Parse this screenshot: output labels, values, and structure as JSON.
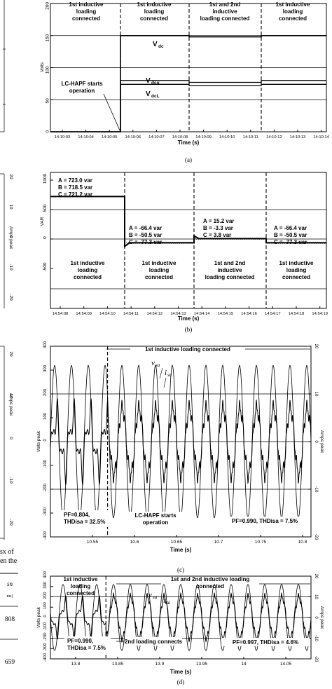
{
  "chart_data": [
    {
      "type": "line",
      "caption": "(a)",
      "xlabel": "Time (s)",
      "ylabel": "Volts",
      "ylim": [
        0,
        200
      ],
      "yticks": [
        "0",
        "50",
        "100",
        "150",
        "200"
      ],
      "xticks": [
        "14:10:03",
        "14:10:04",
        "14:10:05",
        "14:10:06",
        "14:10:07",
        "14:10:08",
        "14:10:09",
        "14:10:10",
        "14:10:11",
        "14:10:12",
        "14:10:13",
        "14:10:14"
      ],
      "regions": [
        "1st inductive loading connected",
        "1st inductive loading connected",
        "1st and 2nd inductive loading connected",
        "1st inductive loading connected"
      ],
      "series": [
        {
          "name": "Vdc",
          "values": [
            0,
            0,
            0,
            150,
            150,
            150,
            148,
            148,
            148,
            150,
            150,
            150
          ]
        },
        {
          "name": "Vdcu",
          "values": [
            0,
            0,
            0,
            80,
            80,
            80,
            77,
            77,
            77,
            80,
            80,
            80
          ]
        },
        {
          "name": "VdcL",
          "values": [
            0,
            0,
            0,
            74,
            74,
            74,
            72,
            72,
            72,
            74,
            74,
            74
          ]
        }
      ],
      "annotations": [
        "LC-HAPF starts operation"
      ]
    },
    {
      "type": "line",
      "caption": "(b)",
      "xlabel": "Time (s)",
      "ylabel": "VAR",
      "ylim": [
        -500,
        1000
      ],
      "yticks": [
        "1000",
        "500",
        "0",
        "-500"
      ],
      "xticks": [
        "14:54:08",
        "14:54:09",
        "14:54:10",
        "14:54:11",
        "14:54:12",
        "14:54:13",
        "14:54:14",
        "14:54:15",
        "14:54:16",
        "14:54:17",
        "14:54:18",
        "14:54:19"
      ],
      "right_axis": {
        "label": "Amps peak",
        "ticks": [
          "20",
          "10",
          "0",
          "-10",
          "-20"
        ]
      },
      "regions": [
        "1st inductive loading connected",
        "1st inductive loading connected",
        "1st and 2nd inductive loading connected",
        "1st inductive loading connected"
      ],
      "series": [
        {
          "name": "Q",
          "values": [
            721,
            721,
            721,
            -64,
            -64,
            -64,
            6,
            6,
            6,
            -64,
            -64,
            -64
          ]
        }
      ],
      "annotations": [
        [
          "A = 723.0 var",
          "B = 718.5 var",
          "C = 721.2 var"
        ],
        [
          "A = -66.4 var",
          "B = -50.5 var",
          "C = -77.3 var"
        ],
        [
          "A = 15.2 var",
          "B = -3.3 var",
          "C = 3.8 var"
        ],
        [
          "A = -66.4 var",
          "B = -50.5 var",
          "C = -77.3 var"
        ]
      ]
    },
    {
      "type": "line",
      "caption": "(c)",
      "xlabel": "Time (s)",
      "ylabel": "Volts peak",
      "ylim": [
        -400,
        400
      ],
      "yticks": [
        "400",
        "300",
        "200",
        "100",
        "0",
        "-100",
        "-200",
        "-300",
        "-400"
      ],
      "right_axis": {
        "label": "Amps peak",
        "ticks": [
          "20",
          "10",
          "0",
          "-10",
          "-20"
        ],
        "range": [
          -20,
          20
        ]
      },
      "xticks": [
        "10.55",
        "10.6",
        "10.65",
        "10.7",
        "10.75",
        "10.8"
      ],
      "xlim": [
        10.5,
        10.81
      ],
      "regions": [
        "1st inductive loading connected"
      ],
      "series_labels": [
        "vsa",
        "isa"
      ],
      "series": [
        {
          "name": "vsa",
          "amplitude": 320,
          "frequency_hz": 50
        },
        {
          "name": "isa",
          "amplitude_before": 5,
          "amplitude_after": 7
        }
      ],
      "annotations": [
        "PF=0.804, THDisa = 32.5%",
        "LC-HAPF starts operation",
        "PF=0.990, THDisa = 7.5%"
      ]
    },
    {
      "type": "line",
      "caption": "(d)",
      "xlabel": "Time (s)",
      "ylabel": "Volts peak",
      "ylim": [
        -400,
        400
      ],
      "yticks": [
        "400",
        "300",
        "200",
        "100",
        "0",
        "-100",
        "-200",
        "-300",
        "-400"
      ],
      "right_axis": {
        "label": "Amps peak",
        "ticks": [
          "20",
          "10",
          "0",
          "-10",
          "-20"
        ],
        "range": [
          -20,
          20
        ]
      },
      "xticks": [
        "13.8",
        "13.85",
        "13.9",
        "13.95",
        "14",
        "14.05"
      ],
      "xlim": [
        13.77,
        14.08
      ],
      "regions": [
        "1st inductive loading connected",
        "1st and 2nd inductive loading connected"
      ],
      "series_labels": [
        "vsa",
        "isa"
      ],
      "series": [
        {
          "name": "vsa",
          "amplitude": 320,
          "frequency_hz": 50
        },
        {
          "name": "isa",
          "amplitude_before": 6.5,
          "amplitude_after": 10
        }
      ],
      "annotations": [
        "PF=0.990, THDisa = 7.5%",
        "2nd loading connects",
        "PF=0.997, THDisa = 4.6%"
      ]
    }
  ],
  "left_fragments": {
    "amps_label": "Amps peak",
    "b_ticks": [
      "20",
      "10",
      "0",
      "-10",
      "-20"
    ],
    "c_ticks": [
      "20",
      "10",
      "0",
      "-10",
      "-20"
    ],
    "text_lines": [
      "sx  of",
      "en the"
    ],
    "table_header": "sn",
    "table_unit": "ms)",
    "table_values": [
      "808",
      "659"
    ]
  }
}
